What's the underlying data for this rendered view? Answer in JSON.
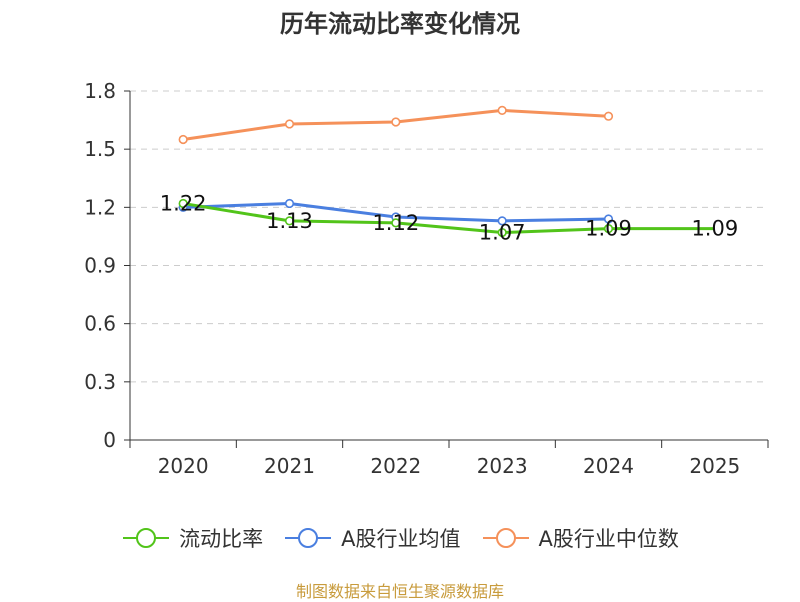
{
  "chart_data": {
    "type": "line",
    "title": "历年流动比率变化情况",
    "categories": [
      "2020",
      "2021",
      "2022",
      "2023",
      "2024",
      "2025"
    ],
    "ylim": [
      0,
      1.8
    ],
    "yticks": [
      "0",
      "0.3",
      "0.6",
      "0.9",
      "1.2",
      "1.5",
      "1.8"
    ],
    "grid": true,
    "legend_position": "bottom",
    "series": [
      {
        "name": "流动比率",
        "color": "#52c41a",
        "values": [
          1.22,
          1.13,
          1.12,
          1.07,
          1.09,
          1.09
        ],
        "labels": [
          "1.22",
          "1.13",
          "1.12",
          "1.07",
          "1.09",
          "1.09"
        ]
      },
      {
        "name": "A股行业均值",
        "color": "#4a7fe0",
        "values": [
          1.2,
          1.22,
          1.15,
          1.13,
          1.14,
          null
        ]
      },
      {
        "name": "A股行业中位数",
        "color": "#f5915a",
        "values": [
          1.55,
          1.63,
          1.64,
          1.7,
          1.67,
          null
        ]
      }
    ]
  },
  "footer": {
    "source": "制图数据来自恒生聚源数据库"
  }
}
